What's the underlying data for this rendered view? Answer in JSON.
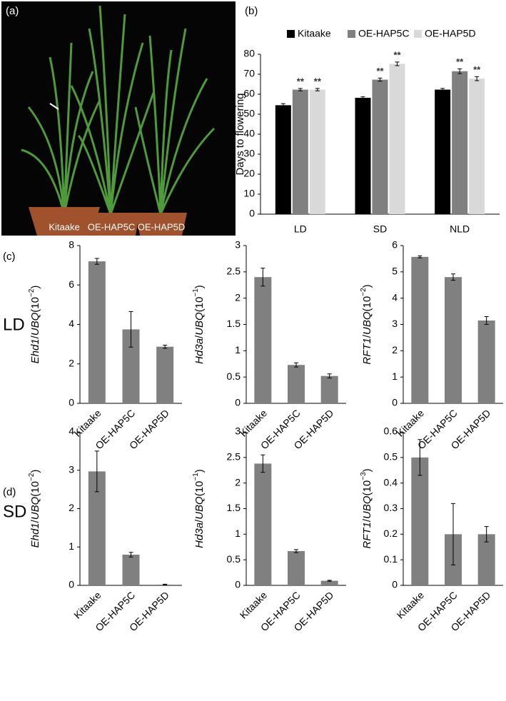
{
  "panel_labels": [
    "(a)",
    "(b)",
    "(c)",
    "(d)"
  ],
  "row_labels": [
    "LD",
    "SD"
  ],
  "photo": {
    "labels": [
      "Kitaake",
      "OE-HAP5C",
      "OE-HAP5D"
    ]
  },
  "chart_data": [
    {
      "type": "bar",
      "ylabel": "Days to flowering",
      "categories": [
        "LD",
        "SD",
        "NLD"
      ],
      "series": [
        {
          "name": "Kitaake",
          "color": "#000000",
          "values": [
            54.5,
            58.2,
            62.3
          ],
          "errors": [
            0.8,
            0.5,
            0.6
          ]
        },
        {
          "name": "OE-HAP5C",
          "color": "#808080",
          "values": [
            62.3,
            67.3,
            71.5
          ],
          "errors": [
            0.6,
            0.8,
            1.2
          ],
          "significance": [
            "**",
            "**",
            "**"
          ]
        },
        {
          "name": "OE-HAP5D",
          "color": "#d9d9d9",
          "values": [
            62.3,
            75.2,
            67.8
          ],
          "errors": [
            0.6,
            0.9,
            1.0
          ],
          "significance": [
            "**",
            "**",
            "**"
          ]
        }
      ],
      "ylim": [
        0,
        80
      ],
      "yticks": [
        0,
        10,
        20,
        30,
        40,
        50,
        60,
        70,
        80
      ]
    },
    {
      "type": "bar",
      "ylabel_parts": [
        "Ehd1",
        "/",
        "UBQ",
        "(10",
        "−2",
        ")"
      ],
      "categories": [
        "Kitaake",
        "OE-HAP5C",
        "OE-HAP5D"
      ],
      "values": [
        7.2,
        3.75,
        2.87
      ],
      "errors": [
        0.15,
        0.9,
        0.08
      ],
      "color": "#808080",
      "ylim": [
        0,
        8
      ],
      "yticks": [
        0,
        2,
        4,
        6,
        8
      ]
    },
    {
      "type": "bar",
      "ylabel_parts": [
        "Hd3a",
        "/",
        "UBQ",
        "(10",
        "−1",
        ")"
      ],
      "categories": [
        "Kitaake",
        "OE-HAP5C",
        "OE-HAP5D"
      ],
      "values": [
        2.4,
        0.73,
        0.52
      ],
      "errors": [
        0.17,
        0.04,
        0.04
      ],
      "color": "#808080",
      "ylim": [
        0,
        3
      ],
      "yticks": [
        0,
        0.5,
        1,
        1.5,
        2,
        2.5,
        3
      ]
    },
    {
      "type": "bar",
      "ylabel_parts": [
        "RFT1",
        "/",
        "UBQ",
        "(10",
        "−2",
        ")"
      ],
      "categories": [
        "Kitaake",
        "OE-HAP5C",
        "OE-HAP5D"
      ],
      "values": [
        5.57,
        4.8,
        3.15
      ],
      "errors": [
        0.04,
        0.12,
        0.15
      ],
      "color": "#808080",
      "ylim": [
        0,
        6
      ],
      "yticks": [
        0,
        1,
        2,
        3,
        4,
        5,
        6
      ]
    },
    {
      "type": "bar",
      "ylabel_parts": [
        "Ehd1",
        "/",
        "UBQ",
        "(10",
        "−2",
        ")"
      ],
      "categories": [
        "Kitaake",
        "OE-HAP5C",
        "OE-HAP5D"
      ],
      "values": [
        2.97,
        0.8,
        0.02
      ],
      "errors": [
        0.53,
        0.06,
        0.01
      ],
      "color": "#808080",
      "ylim": [
        0,
        4
      ],
      "yticks": [
        0,
        1,
        2,
        3,
        4
      ]
    },
    {
      "type": "bar",
      "ylabel_parts": [
        "Hd3a",
        "/",
        "UBQ",
        "(10",
        "−1",
        ")"
      ],
      "categories": [
        "Kitaake",
        "OE-HAP5C",
        "OE-HAP5D"
      ],
      "values": [
        2.38,
        0.67,
        0.09
      ],
      "errors": [
        0.17,
        0.03,
        0.01
      ],
      "color": "#808080",
      "ylim": [
        0,
        3
      ],
      "yticks": [
        0,
        0.5,
        1,
        1.5,
        2,
        2.5,
        3
      ]
    },
    {
      "type": "bar",
      "ylabel_parts": [
        "RFT1",
        "/",
        "UBQ",
        "(10",
        "−3",
        ")"
      ],
      "categories": [
        "Kitaake",
        "OE-HAP5C",
        "OE-HAP5D"
      ],
      "values": [
        0.5,
        0.2,
        0.2
      ],
      "errors": [
        0.07,
        0.12,
        0.03
      ],
      "color": "#808080",
      "ylim": [
        0,
        0.6
      ],
      "yticks": [
        0,
        0.1,
        0.2,
        0.3,
        0.4,
        0.5,
        0.6
      ]
    }
  ]
}
